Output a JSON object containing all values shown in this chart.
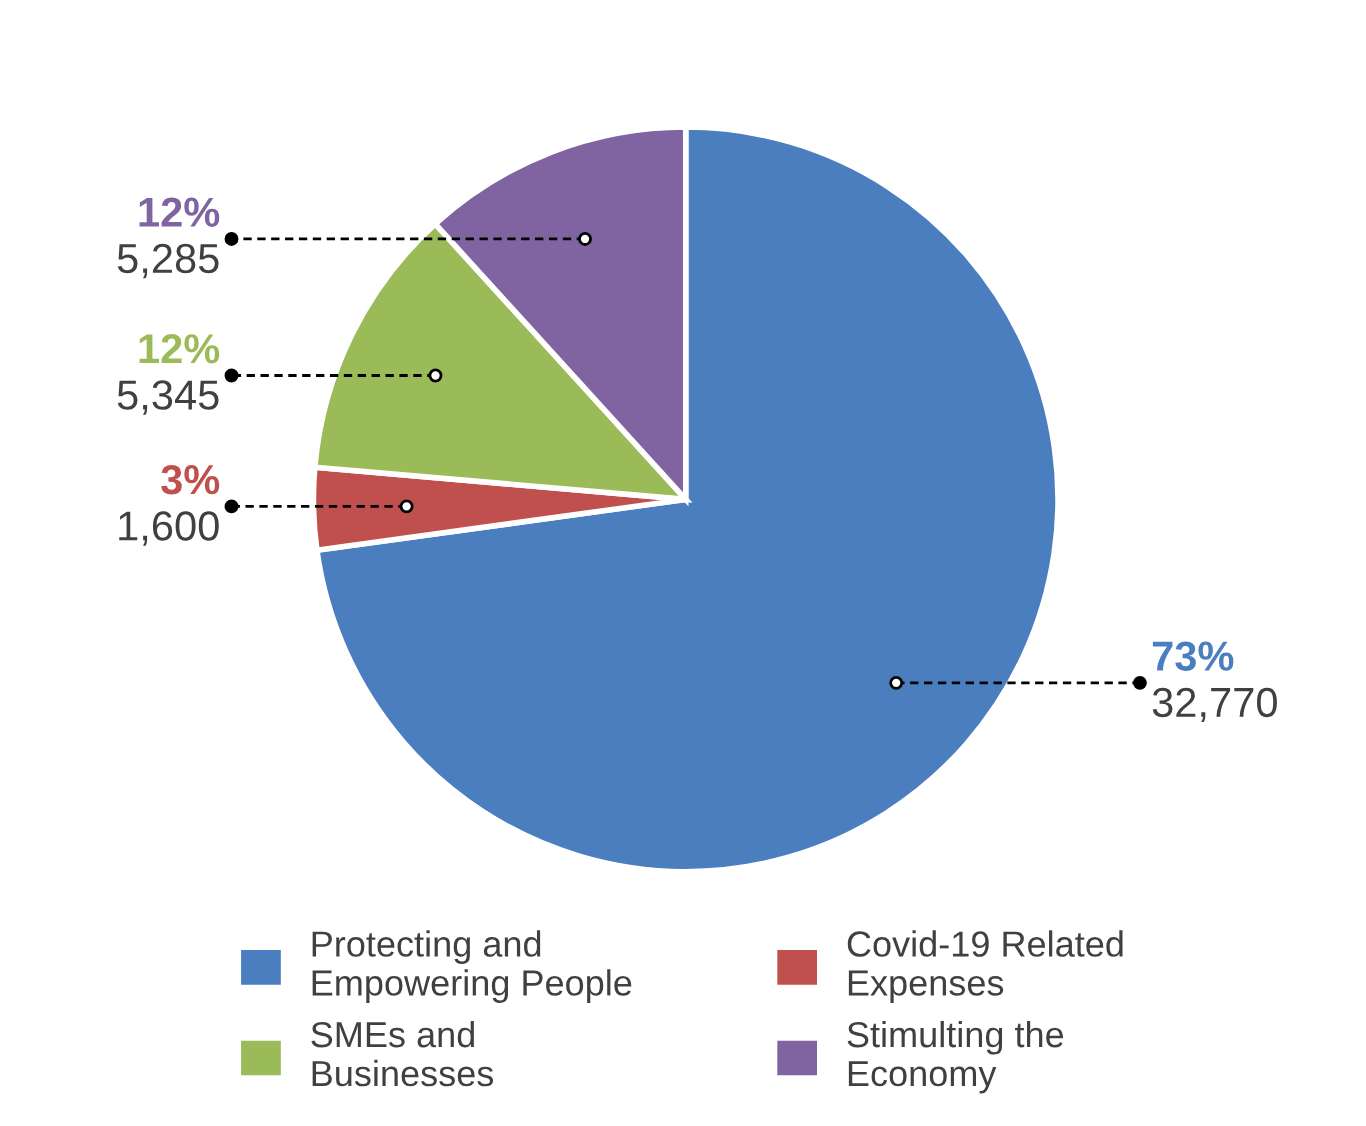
{
  "chart_data": {
    "type": "pie",
    "categories": [
      "Protecting and\nEmpowering People",
      "Covid-19 Related\nExpenses",
      "SMEs and\nBusinesses",
      "Stimulting the\nEconomy"
    ],
    "values": [
      32770,
      1600,
      5345,
      5285
    ],
    "colors": [
      "#4a7ebf",
      "#c0504d",
      "#9bbb59",
      "#8064a2"
    ],
    "value_labels": [
      "73%\n32,770",
      "3%\n1,600",
      "12%\n5,345",
      "12%\n5,285"
    ],
    "legend": "bottom"
  }
}
